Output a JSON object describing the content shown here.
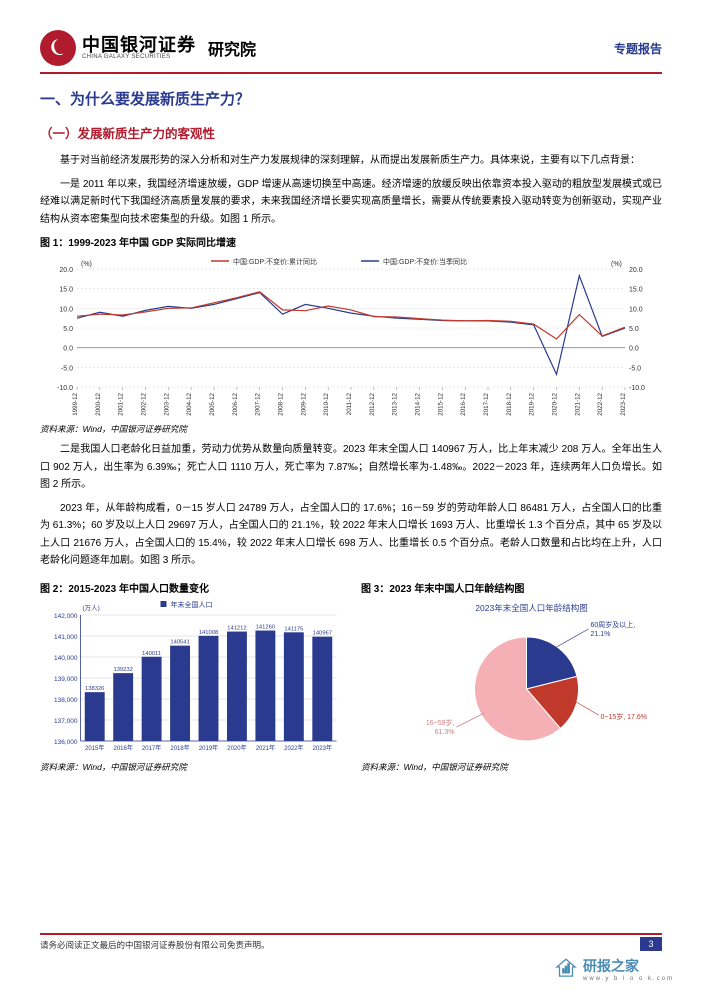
{
  "header": {
    "company_cn": "中国银河证券",
    "company_en": "CHINA GALAXY SECURITIES",
    "institute": "研究院",
    "report_type": "专题报告"
  },
  "section1_title": "一、为什么要发展新质生产力？",
  "section1_1_title": "（一）发展新质生产力的客观性",
  "para1": "基于对当前经济发展形势的深入分析和对生产力发展规律的深刻理解，从而提出发展新质生产力。具体来说，主要有以下几点背景：",
  "para2": "一是 2011 年以来，我国经济增速放缓，GDP 增速从高速切换至中高速。经济增速的放缓反映出依靠资本投入驱动的粗放型发展模式或已经难以满足新时代下我国经济高质量发展的要求，未来我国经济增长要实现高质量增长，需要从传统要素投入驱动转变为创新驱动，实现产业结构从资本密集型向技术密集型的升级。如图 1 所示。",
  "fig1": {
    "title": "图 1：1999-2023 年中国 GDP 实际同比增速",
    "type": "line",
    "legend_a": "中国:GDP:不变价:累计同比",
    "legend_b": "中国:GDP:不变价:当季同比",
    "color_a": "#c0392b",
    "color_b": "#2a3b8f",
    "axis_color": "#888888",
    "grid_color": "#d0d0d0",
    "text_color": "#333333",
    "y_label": "(%)",
    "ylim": [
      -10,
      20
    ],
    "yticks": [
      -10,
      -5,
      0,
      5,
      10,
      15,
      20
    ],
    "x_categories": [
      "1999-12",
      "2000-12",
      "2001-12",
      "2002-12",
      "2003-12",
      "2004-12",
      "2005-12",
      "2006-12",
      "2007-12",
      "2008-12",
      "2009-12",
      "2010-12",
      "2011-12",
      "2012-12",
      "2013-12",
      "2014-12",
      "2015-12",
      "2016-12",
      "2017-12",
      "2018-12",
      "2019-12",
      "2020-12",
      "2021-12",
      "2022-12",
      "2023-12"
    ],
    "series_a": [
      8.0,
      8.5,
      8.3,
      9.1,
      10.0,
      10.1,
      11.4,
      12.7,
      14.2,
      9.6,
      9.4,
      10.6,
      9.6,
      7.9,
      7.8,
      7.4,
      7.0,
      6.8,
      6.9,
      6.7,
      6.0,
      2.2,
      8.4,
      3.0,
      5.2
    ],
    "series_b": [
      7.5,
      9.0,
      8.0,
      9.5,
      10.5,
      10.0,
      11.0,
      12.5,
      14.0,
      8.5,
      11.0,
      10.0,
      8.8,
      8.0,
      7.5,
      7.2,
      6.9,
      6.8,
      6.8,
      6.5,
      5.8,
      -6.8,
      18.3,
      2.9,
      5.0
    ],
    "source": "资料来源：Wind，中国银河证券研究院"
  },
  "para3": "二是我国人口老龄化日益加重，劳动力优势从数量向质量转变。2023 年末全国人口 140967 万人，比上年末减少 208 万人。全年出生人口 902 万人，出生率为 6.39‰；死亡人口 1110 万人，死亡率为 7.87‰；自然增长率为-1.48‰。2022－2023 年，连续两年人口负增长。如图 2 所示。",
  "para4": "2023 年，从年龄构成看，0－15 岁人口 24789 万人，占全国人口的 17.6%；16－59 岁的劳动年龄人口 86481 万人，占全国人口的比重为 61.3%；60 岁及以上人口 29697 万人，占全国人口的 21.1%，较 2022 年末人口增长 1693 万人、比重增长 1.3 个百分点，其中 65 岁及以上人口 21676 万人，占全国人口的 15.4%，较 2022 年末人口增长 698 万人、比重增长 0.5 个百分点。老龄人口数量和占比均在上升，人口老龄化问题逐年加剧。如图 3 所示。",
  "fig2": {
    "title": "图 2：2015-2023 年中国人口数量变化",
    "type": "bar",
    "legend": "年末全国人口",
    "y_label": "(万人)",
    "bar_color": "#2a3b8f",
    "axis_color": "#2a3b8f",
    "grid_color": "#cccccc",
    "text_color": "#2a3b8f",
    "ylim": [
      136000,
      142000
    ],
    "yticks": [
      136000,
      137000,
      138000,
      139000,
      140000,
      141000,
      142000
    ],
    "ytick_labels": [
      "136,000",
      "137,000",
      "138,000",
      "139,000",
      "140,000",
      "141,000",
      "142,000"
    ],
    "categories": [
      "2015年",
      "2016年",
      "2017年",
      "2018年",
      "2019年",
      "2020年",
      "2021年",
      "2022年",
      "2023年"
    ],
    "values": [
      138326,
      139232,
      140011,
      140541,
      141008,
      141212,
      141260,
      141175,
      140967
    ],
    "value_labels": [
      "138326",
      "139232",
      "140011",
      "140541",
      "141008",
      "141212",
      "141260",
      "141175",
      "140967"
    ],
    "source": "资料来源：Wind，中国银河证券研究院"
  },
  "fig3": {
    "title": "图 3：2023 年末中国人口年龄结构图",
    "chart_title": "2023年末全国人口年龄结构图",
    "type": "pie",
    "segments": [
      {
        "label": "60岁及以上, 21.1%",
        "value": 21.1,
        "color": "#2a3b8f",
        "label_color": "#2a3b8f"
      },
      {
        "label": "0~15岁, 17.6%",
        "value": 17.6,
        "color": "#c0392b",
        "label_color": "#c0392b"
      },
      {
        "label": "16~59岁, 61.3%",
        "value": 61.3,
        "color": "#f5b0b5",
        "label_color": "#d08285"
      }
    ],
    "chart_title_color": "#2a3b8f",
    "source": "资料来源：Wind，中国银河证券研究院"
  },
  "disclaimer": "请务必阅读正文最后的中国银河证券股份有限公司免责声明。",
  "page_number": "3",
  "watermark": {
    "main": "研报之家",
    "sub": "www.y b l o o k.com"
  }
}
